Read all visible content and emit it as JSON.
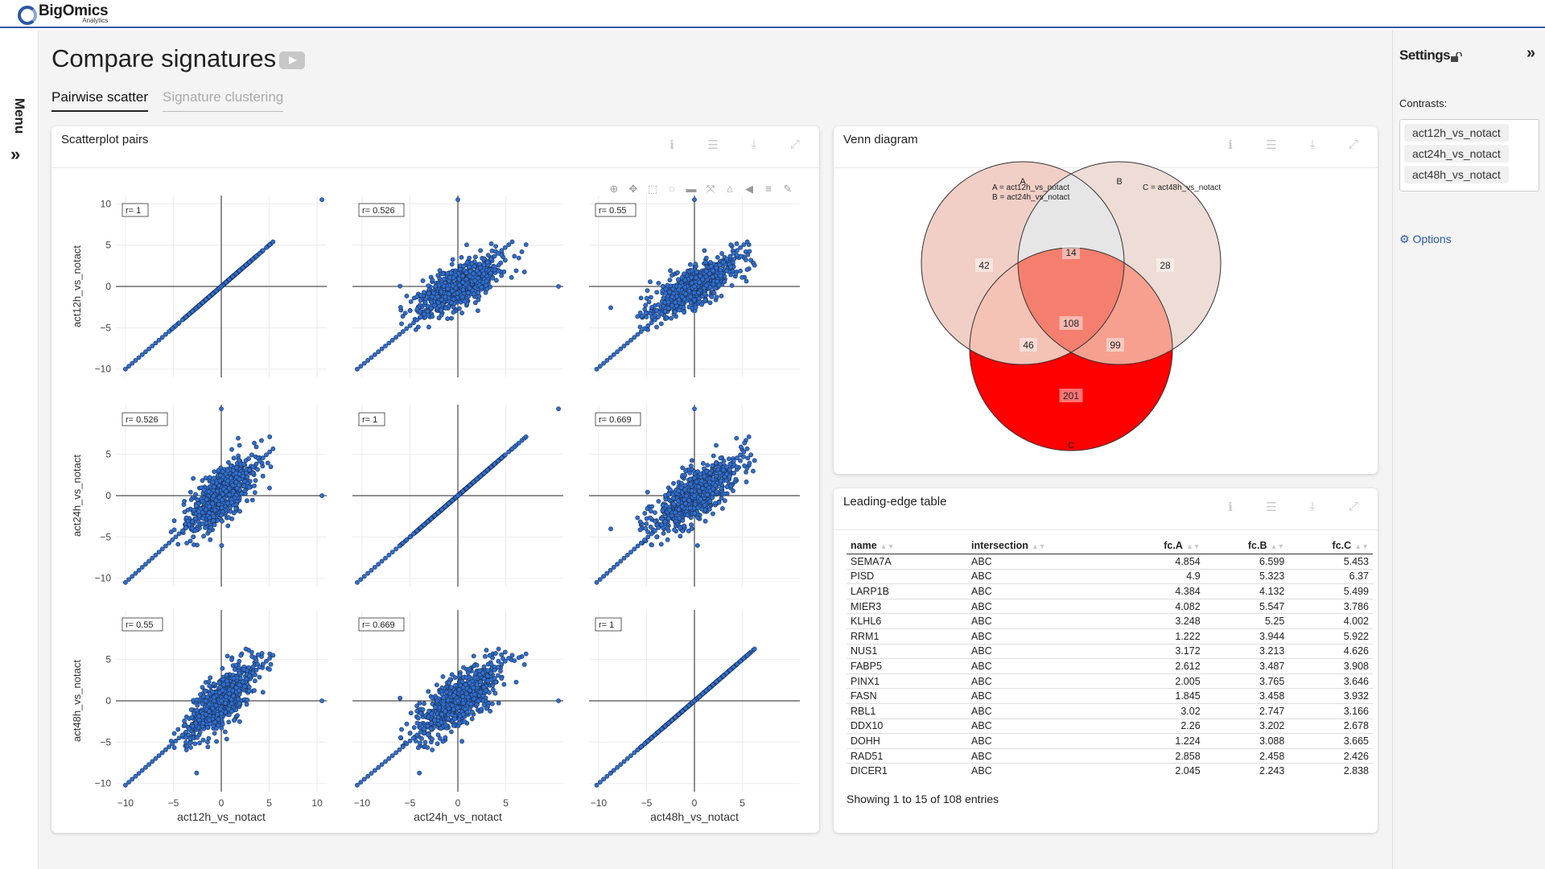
{
  "app": {
    "brand": "BigOmics",
    "brand_sub": "Analytics"
  },
  "menu": {
    "label": "Menu",
    "expand_glyph": "»"
  },
  "page": {
    "title": "Compare signatures",
    "video_icon": "youtube-icon"
  },
  "tabs": [
    {
      "label": "Pairwise scatter",
      "active": true
    },
    {
      "label": "Signature clustering",
      "active": false
    }
  ],
  "scatter_card": {
    "title": "Scatterplot pairs"
  },
  "venn_card": {
    "title": "Venn diagram"
  },
  "table_card": {
    "title": "Leading-edge table"
  },
  "card_tools": [
    "info-icon",
    "menu-icon",
    "download-icon",
    "expand-icon"
  ],
  "settings": {
    "title": "Settings",
    "collapse_glyph": "»",
    "contrasts_label": "Contrasts:",
    "contrasts": [
      "act12h_vs_notact",
      "act24h_vs_notact",
      "act48h_vs_notact"
    ],
    "options_label": "Options"
  },
  "chart_data": [
    {
      "type": "scatter",
      "title": "",
      "description_panels": "3x3 pairwise scatter matrix",
      "variables": [
        "act12h_vs_notact",
        "act24h_vs_notact",
        "act48h_vs_notact"
      ],
      "correlations": [
        [
          1,
          0.526,
          0.55
        ],
        [
          0.526,
          1,
          0.669
        ],
        [
          0.55,
          0.669,
          1
        ]
      ],
      "correlation_labels": [
        [
          "r= 1",
          "r= 0.526",
          "r= 0.55"
        ],
        [
          "r= 0.526",
          "r= 1",
          "r= 0.669"
        ],
        [
          "r= 0.55",
          "r= 0.669",
          "r= 1"
        ]
      ],
      "xlim": [
        -11,
        11
      ],
      "ylim": [
        -11,
        11
      ],
      "row_ticks": [
        [
          -10,
          -5,
          0,
          5,
          10
        ],
        [
          -10,
          -5,
          0,
          5
        ],
        [
          -10,
          -5,
          0,
          5
        ]
      ],
      "col_ticks": [
        [
          -10,
          -5,
          0,
          5,
          10
        ],
        [
          -10,
          -5,
          0,
          5
        ],
        [
          -10,
          -5,
          0,
          5
        ]
      ],
      "point_color": "#2f6fce",
      "grid": true
    },
    {
      "type": "venn",
      "legend": [
        "A = act12h_vs_notact",
        "B = act24h_vs_notact",
        "C = act48h_vs_notact"
      ],
      "set_labels": [
        "A",
        "B",
        "C"
      ],
      "regions": {
        "A": 42,
        "B": 28,
        "C": 201,
        "AB": 14,
        "AC": 46,
        "BC": 99,
        "ABC": 108
      },
      "colors": {
        "A": "#f1cfc6",
        "B": "#eedcd6",
        "C": "#ff0000",
        "AB": "#e6e6e6",
        "AC": "#f5c2b6",
        "BC": "#f7a08f",
        "ABC": "#f47f6e"
      }
    },
    {
      "type": "table",
      "columns": [
        "name",
        "intersection",
        "fc.A",
        "fc.B",
        "fc.C"
      ],
      "rows": [
        [
          "SEMA7A",
          "ABC",
          "4.854",
          "6.599",
          "5.453"
        ],
        [
          "PISD",
          "ABC",
          "4.9",
          "5.323",
          "6.37"
        ],
        [
          "LARP1B",
          "ABC",
          "4.384",
          "4.132",
          "5.499"
        ],
        [
          "MIER3",
          "ABC",
          "4.082",
          "5.547",
          "3.786"
        ],
        [
          "KLHL6",
          "ABC",
          "3.248",
          "5.25",
          "4.002"
        ],
        [
          "RRM1",
          "ABC",
          "1.222",
          "3.944",
          "5.922"
        ],
        [
          "NUS1",
          "ABC",
          "3.172",
          "3.213",
          "4.626"
        ],
        [
          "FABP5",
          "ABC",
          "2.612",
          "3.487",
          "3.908"
        ],
        [
          "PINX1",
          "ABC",
          "2.005",
          "3.765",
          "3.646"
        ],
        [
          "FASN",
          "ABC",
          "1.845",
          "3.458",
          "3.932"
        ],
        [
          "RBL1",
          "ABC",
          "3.02",
          "2.747",
          "3.166"
        ],
        [
          "DDX10",
          "ABC",
          "2.26",
          "3.202",
          "2.678"
        ],
        [
          "DOHH",
          "ABC",
          "1.224",
          "3.088",
          "3.665"
        ],
        [
          "RAD51",
          "ABC",
          "2.858",
          "2.458",
          "2.426"
        ],
        [
          "DICER1",
          "ABC",
          "2.045",
          "2.243",
          "2.838"
        ]
      ],
      "footer": "Showing 1 to 15 of 108 entries"
    }
  ]
}
